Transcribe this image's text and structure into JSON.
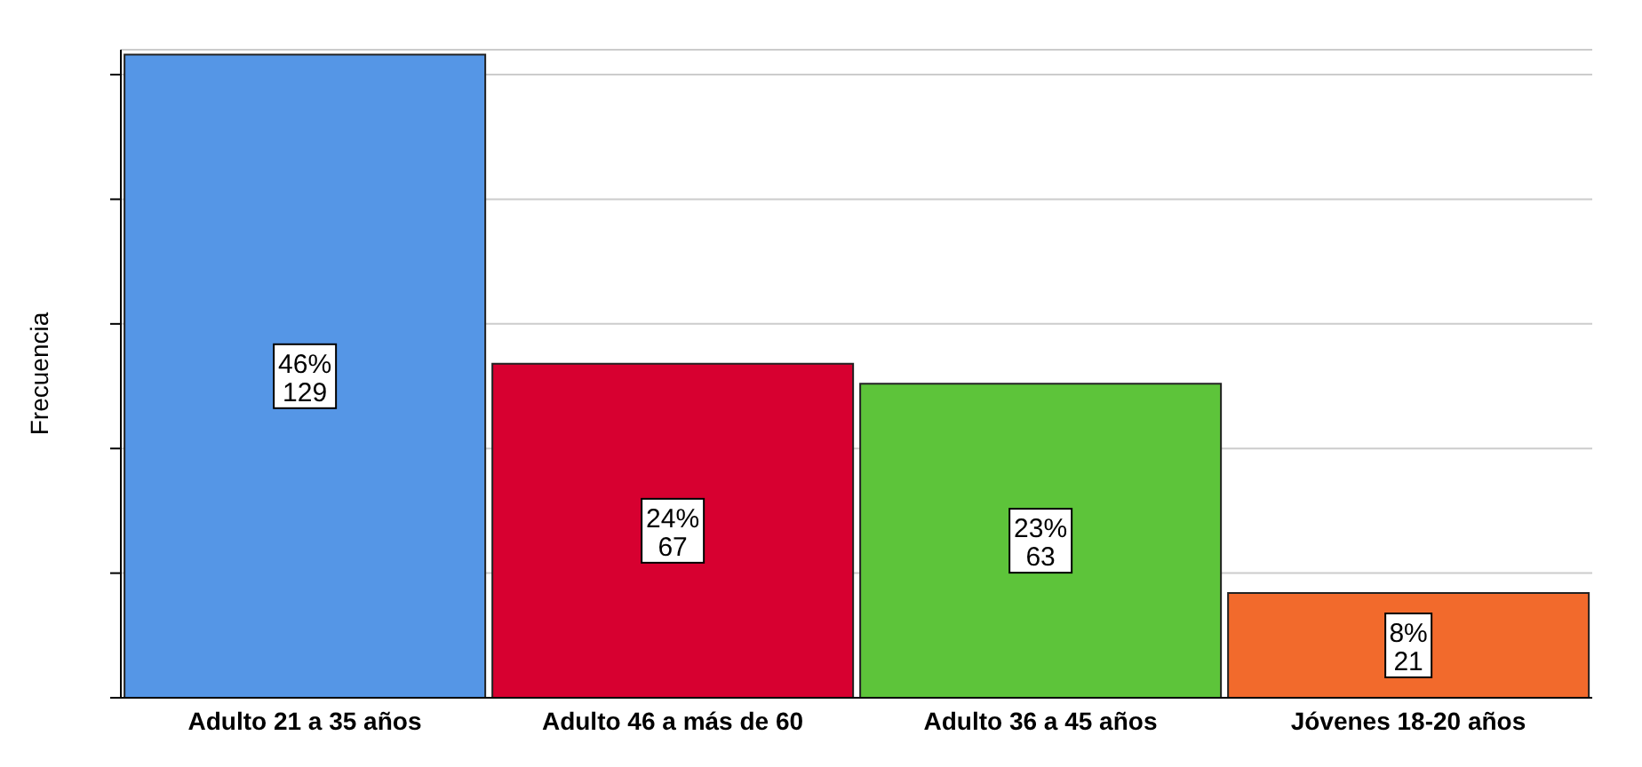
{
  "chart_data": {
    "type": "bar",
    "ylabel": "Frecuencia",
    "categories": [
      "Adulto 21 a 35 años",
      "Adulto 46 a más de 60",
      "Adulto  36 a 45 años",
      "Jóvenes 18-20 años"
    ],
    "values": [
      129,
      67,
      63,
      21
    ],
    "colors": [
      "#5596e6",
      "#d70030",
      "#5dc43a",
      "#f26a2c"
    ],
    "value_labels": [
      "46%\n129",
      "24%\n67",
      "23%\n63",
      "8%\n21"
    ],
    "ylim": [
      0,
      130
    ],
    "yticks": [
      {
        "value": 0,
        "label": null
      },
      {
        "value": 25,
        "label": null
      },
      {
        "value": 50,
        "label": null
      },
      {
        "value": 75,
        "label": null
      },
      {
        "value": 100,
        "label": null
      },
      {
        "value": 125,
        "label": null
      }
    ],
    "grid": "y",
    "tick_labels": "x"
  }
}
